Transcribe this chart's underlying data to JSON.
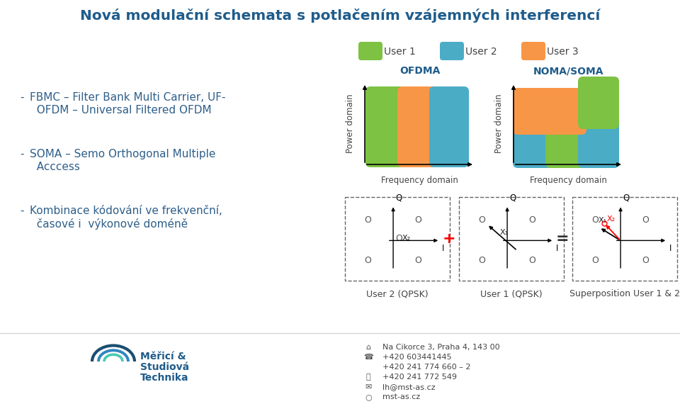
{
  "title": "Nová modulační schemata s potlačením vzájemných interferencí",
  "title_color": "#1F5C8B",
  "bg_color": "#FFFFFF",
  "bullet_items": [
    [
      "FBMC – Filter Bank Multi Carrier, UF-",
      "  OFDM – Universal Filtered OFDM"
    ],
    [
      "SOMA – Semo Orthogonal Multiple",
      "  Acccess"
    ],
    [
      "Kombinace kódování ve frekvenční,",
      "  časové i  výkonové doméně"
    ]
  ],
  "bullet_color": "#2E5F8A",
  "user1_color": "#7DC242",
  "user2_color": "#4BACC6",
  "user3_color": "#F79646",
  "ofdma_label": "OFDMA",
  "noma_label": "NOMA/SOMA",
  "freq_label": "Frequency domain",
  "power_label": "Power domain",
  "user1_label": "User 1",
  "user2_label": "User 2",
  "user3_label": "User 3",
  "qpsk_user2": "User 2 (QPSK)",
  "qpsk_user1": "User 1 (QPSK)",
  "qpsk_super": "Superposition User 1 & 2",
  "footer_address": "Na Cikorce 3, Praha 4, 143 00",
  "footer_phone1": "+420 603441445",
  "footer_phone2": "+420 241 774 660 – 2",
  "footer_fax": "+420 241 772 549",
  "footer_email": "lh@mst-as.cz",
  "footer_web": "mst-as.cz"
}
